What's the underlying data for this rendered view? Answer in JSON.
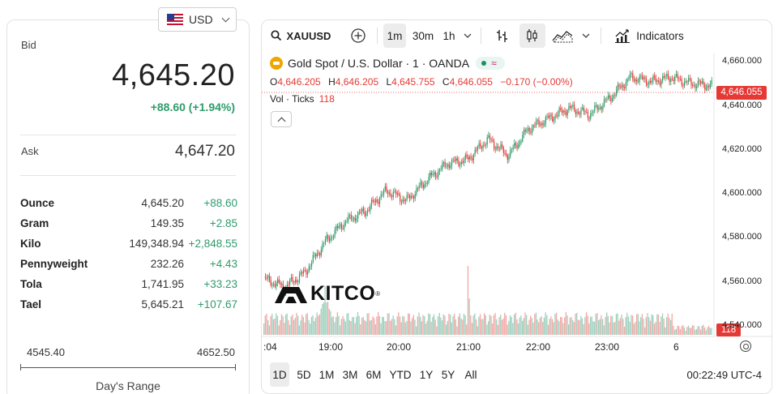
{
  "currency": {
    "code": "USD",
    "flag_icon": "us-flag-icon"
  },
  "bid": {
    "label": "Bid",
    "value": "4,645.20",
    "change": "+88.60 (+1.94%)"
  },
  "ask": {
    "label": "Ask",
    "value": "4,647.20"
  },
  "units": [
    {
      "name": "Ounce",
      "price": "4,645.20",
      "change": "+88.60"
    },
    {
      "name": "Gram",
      "price": "149.35",
      "change": "+2.85"
    },
    {
      "name": "Kilo",
      "price": "149,348.94",
      "change": "+2,848.55"
    },
    {
      "name": "Pennyweight",
      "price": "232.26",
      "change": "+4.43"
    },
    {
      "name": "Tola",
      "price": "1,741.95",
      "change": "+33.23"
    },
    {
      "name": "Tael",
      "price": "5,645.21",
      "change": "+107.67"
    }
  ],
  "days_range": {
    "low": "4545.40",
    "high": "4652.50",
    "label": "Day's Range"
  },
  "colors": {
    "up": "#2f9b6b",
    "down": "#e53935",
    "accent": "#e53935"
  },
  "toolbar": {
    "symbol": "XAUUSD",
    "intervals": [
      "1m",
      "30m",
      "1h"
    ],
    "active_interval": "1m",
    "indicators_label": "Indicators"
  },
  "legend": {
    "title": "Gold Spot  /  U.S. Dollar · 1 · OANDA",
    "open_label": "O",
    "open": "4,646.205",
    "high_label": "H",
    "high": "4,646.205",
    "low_label": "L",
    "low": "4,645.755",
    "close_label": "C",
    "close": "4,646.055",
    "change": "−0.170 (−0.00%)",
    "vol_label": "Vol · Ticks",
    "vol_value": "118"
  },
  "chart_data": {
    "type": "line",
    "title": "Gold Spot / U.S. Dollar · 1 · OANDA",
    "xlabel": "",
    "ylabel": "",
    "y_ticks": [
      "4,660.000",
      "4,640.000",
      "4,620.000",
      "4,600.000",
      "4,580.000",
      "4,560.000",
      "4,540.000"
    ],
    "x_ticks": [
      ":04",
      "19:00",
      "20:00",
      "21:00",
      "22:00",
      "23:00",
      "6"
    ],
    "ylim": [
      4535,
      4662
    ],
    "series": [
      {
        "x": [
          "18:04",
          "18:30",
          "18:50",
          "19:00",
          "19:20",
          "19:40",
          "20:00",
          "20:10",
          "20:25",
          "20:40",
          "21:00",
          "21:15",
          "21:30",
          "21:50",
          "22:10",
          "22:30",
          "22:50",
          "23:10",
          "23:25",
          "23:40",
          "23:55",
          "00:10",
          "00:22"
        ],
        "values": [
          4552,
          4548,
          4555,
          4570,
          4580,
          4585,
          4595,
          4590,
          4600,
          4608,
          4610,
          4620,
          4612,
          4625,
          4630,
          4635,
          4632,
          4640,
          4650,
          4648,
          4650,
          4647,
          4646
        ]
      }
    ],
    "last_price": "4,646.055",
    "last_volume": "118"
  },
  "watermark": "KITCO",
  "ranges": [
    "1D",
    "5D",
    "1M",
    "3M",
    "6M",
    "YTD",
    "1Y",
    "5Y",
    "All"
  ],
  "active_range": "1D",
  "clock": "00:22:49 UTC-4"
}
